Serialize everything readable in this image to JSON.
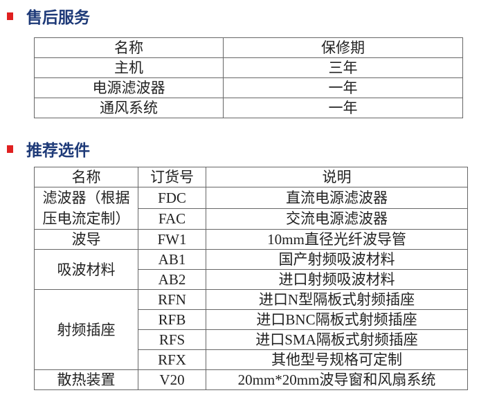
{
  "colors": {
    "bullet": "#e02020",
    "title": "#1e3a78"
  },
  "after_sales": {
    "title": "售后服务",
    "headers": [
      "名称",
      "保修期"
    ],
    "rows": [
      [
        "主机",
        "三年"
      ],
      [
        "电源滤波器",
        "一年"
      ],
      [
        "通风系统",
        "一年"
      ]
    ]
  },
  "options": {
    "title": "推荐选件",
    "headers": [
      "名称",
      "订货号",
      "说明"
    ],
    "groups": [
      {
        "name": "滤波器（根据压电流定制）",
        "items": [
          [
            "FDC",
            "直流电源滤波器"
          ],
          [
            "FAC",
            "交流电源滤波器"
          ]
        ]
      },
      {
        "name": "波导",
        "items": [
          [
            "FW1",
            "10mm直径光纤波导管"
          ]
        ]
      },
      {
        "name": "吸波材料",
        "items": [
          [
            "AB1",
            "国产射频吸波材料"
          ],
          [
            "AB2",
            "进口射频吸波材料"
          ]
        ]
      },
      {
        "name": "射频插座",
        "items": [
          [
            "RFN",
            "进口N型隔板式射频插座"
          ],
          [
            "RFB",
            "进口BNC隔板式射频插座"
          ],
          [
            "RFS",
            "进口SMA隔板式射频插座"
          ],
          [
            "RFX",
            "其他型号规格可定制"
          ]
        ]
      },
      {
        "name": "散热装置",
        "items": [
          [
            "V20",
            "20mm*20mm波导窗和风扇系统"
          ]
        ]
      }
    ]
  }
}
